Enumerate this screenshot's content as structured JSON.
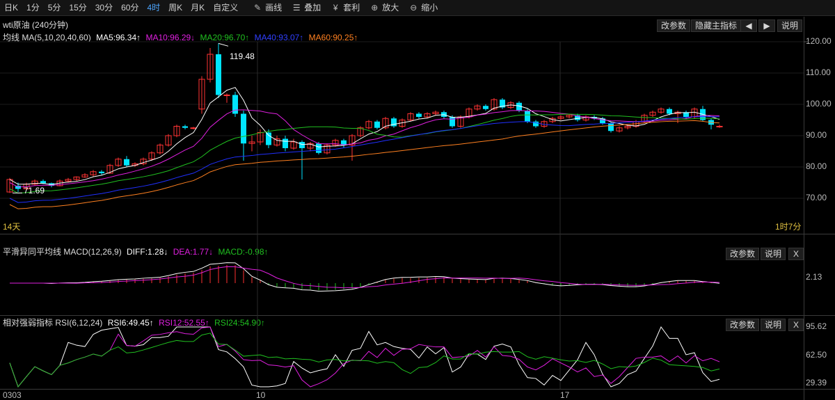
{
  "toolbar": {
    "periods": [
      "日K",
      "1分",
      "5分",
      "15分",
      "30分",
      "60分",
      "4时",
      "周K",
      "月K",
      "自定义"
    ],
    "active_period": "4时",
    "tools": [
      {
        "icon": "pencil-icon",
        "glyph": "✎",
        "label": "画线"
      },
      {
        "icon": "layers-icon",
        "glyph": "☰",
        "label": "叠加"
      },
      {
        "icon": "money-bag-icon",
        "glyph": "¥",
        "label": "套利"
      },
      {
        "icon": "zoom-in-icon",
        "glyph": "⊕",
        "label": "放大"
      },
      {
        "icon": "zoom-out-icon",
        "glyph": "⊖",
        "label": "缩小"
      }
    ]
  },
  "main": {
    "instrument": "wti原油 (240分钟)",
    "buttons": {
      "params": "改参数",
      "hide": "隐藏主指标",
      "help": "说明",
      "left_icon": "◀",
      "right_icon": "▶"
    },
    "ma_label": "均线 MA(5,10,20,40,60)",
    "ma5": "MA5:96.34↑",
    "ma10": "MA10:96.29↓",
    "ma20": "MA20:96.70↑",
    "ma40": "MA40:93.07↑",
    "ma60": "MA60:90.25↑",
    "high_mark": "119.48",
    "low_mark": "71.69",
    "left_note": "14天",
    "right_note": "1时7分",
    "y_ticks": [
      "120.00",
      "110.00",
      "100.00",
      "90.00",
      "80.00",
      "70.00"
    ],
    "colors": {
      "up": "#ff3333",
      "down": "#00e5ff",
      "ma5": "#ffffff",
      "ma10": "#e020e0",
      "ma20": "#20c020",
      "ma40": "#2030ff",
      "ma60": "#ff8020"
    }
  },
  "macd": {
    "label": "平滑异同平均线 MACD(12,26,9)",
    "diff": "DIFF:1.28↓",
    "dea": "DEA:1.77↓",
    "macd": "MACD:-0.98↑",
    "buttons": {
      "params": "改参数",
      "help": "说明",
      "close": "X"
    },
    "y_tick": "2.13"
  },
  "rsi": {
    "label": "相对强弱指标 RSI(6,12,24)",
    "rsi6": "RSI6:49.45↑",
    "rsi12": "RSI12:52.55↑",
    "rsi24": "RSI24:54.90↑",
    "buttons": {
      "params": "改参数",
      "help": "说明",
      "close": "X"
    },
    "y_ticks": [
      "95.62",
      "62.50",
      "29.39"
    ]
  },
  "x_axis": {
    "labels": [
      "0303",
      "10",
      "17"
    ]
  },
  "chart_data": {
    "type": "candlestick",
    "title": "wti原油 (240分钟)",
    "ylim": [
      65,
      122
    ],
    "candles": [
      [
        72,
        76,
        71.7,
        76.5
      ],
      [
        74,
        73,
        72,
        75
      ],
      [
        73,
        74.5,
        72.5,
        75
      ],
      [
        74.5,
        75.5,
        74,
        76
      ],
      [
        75.5,
        74.8,
        74.5,
        76
      ],
      [
        74.8,
        74,
        73.5,
        75
      ],
      [
        74,
        75.5,
        73.8,
        76
      ],
      [
        75.5,
        76,
        75,
        76.5
      ],
      [
        76,
        76.8,
        75.5,
        77
      ],
      [
        76.8,
        77.5,
        76.5,
        78
      ],
      [
        77.5,
        78.5,
        77,
        79
      ],
      [
        78.5,
        78,
        77.5,
        79
      ],
      [
        78,
        80.5,
        77.8,
        81
      ],
      [
        80.5,
        82.5,
        80,
        83
      ],
      [
        82.5,
        80.5,
        80,
        83.5
      ],
      [
        80.5,
        81,
        80,
        81.5
      ],
      [
        81,
        82.5,
        80.5,
        83
      ],
      [
        82.5,
        84.5,
        82,
        85
      ],
      [
        84.5,
        87,
        84,
        87.5
      ],
      [
        87,
        90,
        86.5,
        90.5
      ],
      [
        90,
        93,
        89.5,
        93.5
      ],
      [
        93,
        92.5,
        92,
        93.5
      ],
      [
        92.5,
        92.5,
        92,
        92.8
      ],
      [
        98.5,
        108,
        97,
        109
      ],
      [
        108,
        116,
        107,
        118
      ],
      [
        116,
        103,
        102,
        119.5
      ],
      [
        103,
        103,
        100.5,
        103.5
      ],
      [
        103,
        97,
        96,
        104
      ],
      [
        97,
        87.5,
        82,
        98
      ],
      [
        87.5,
        88,
        85,
        90
      ],
      [
        88,
        91,
        87,
        92
      ],
      [
        91,
        87,
        86,
        92
      ],
      [
        87,
        89,
        86.5,
        90
      ],
      [
        89,
        86,
        85,
        90
      ],
      [
        86,
        88,
        85.5,
        89
      ],
      [
        88,
        86,
        76,
        88.5
      ],
      [
        86,
        87.5,
        85,
        88
      ],
      [
        87.5,
        84.5,
        84,
        88
      ],
      [
        84.5,
        87,
        84,
        87.5
      ],
      [
        87,
        88.5,
        86.5,
        89
      ],
      [
        88.5,
        87,
        86,
        89
      ],
      [
        87,
        90,
        82,
        90.5
      ],
      [
        90,
        92.5,
        89.5,
        93
      ],
      [
        92.5,
        94.5,
        92,
        95
      ],
      [
        94.5,
        92.5,
        92,
        95
      ],
      [
        92.5,
        95.5,
        92,
        96
      ],
      [
        95.5,
        93,
        92.5,
        96
      ],
      [
        93,
        95,
        92.5,
        95.5
      ],
      [
        95,
        97,
        94.5,
        97.5
      ],
      [
        97,
        96,
        95.5,
        97.5
      ],
      [
        96,
        97,
        95.5,
        97.5
      ],
      [
        97,
        97.5,
        96.5,
        98
      ],
      [
        97.5,
        96,
        95.5,
        98
      ],
      [
        96,
        93,
        92.5,
        96.5
      ],
      [
        93,
        96,
        92.5,
        96.5
      ],
      [
        96,
        98.5,
        95.5,
        99
      ],
      [
        98.5,
        99.5,
        98,
        100
      ],
      [
        99.5,
        98.5,
        98,
        100
      ],
      [
        98.5,
        101.5,
        98,
        102
      ],
      [
        101.5,
        99,
        98.5,
        102
      ],
      [
        99,
        100.5,
        98.5,
        101
      ],
      [
        100.5,
        98,
        97.5,
        101
      ],
      [
        98,
        94.5,
        94,
        98.5
      ],
      [
        94.5,
        93,
        92.5,
        95
      ],
      [
        93,
        94.5,
        92.5,
        95
      ],
      [
        94.5,
        95.5,
        94,
        96
      ],
      [
        95.5,
        96,
        95,
        96.5
      ],
      [
        96,
        96.5,
        95.5,
        97
      ],
      [
        96.5,
        95,
        94.5,
        97
      ],
      [
        95,
        96,
        94.5,
        96.5
      ],
      [
        96,
        95.5,
        95,
        96.5
      ],
      [
        95.5,
        94,
        93.5,
        96
      ],
      [
        94,
        91.5,
        91,
        94.5
      ],
      [
        91.5,
        92.5,
        91,
        93
      ],
      [
        92.5,
        93,
        92,
        93.5
      ],
      [
        93,
        94.5,
        92.5,
        95
      ],
      [
        94.5,
        96.5,
        94,
        97
      ],
      [
        96.5,
        97.5,
        96,
        98
      ],
      [
        97.5,
        98.5,
        97,
        99
      ],
      [
        98.5,
        97,
        96.5,
        99
      ],
      [
        97,
        97.5,
        94,
        98
      ],
      [
        97.5,
        96,
        95.5,
        98
      ],
      [
        96,
        98.5,
        95.5,
        99
      ],
      [
        98.5,
        95,
        94.5,
        99.5
      ],
      [
        95,
        93.5,
        92,
        95.5
      ],
      [
        93,
        93,
        92.5,
        93.5
      ]
    ]
  }
}
